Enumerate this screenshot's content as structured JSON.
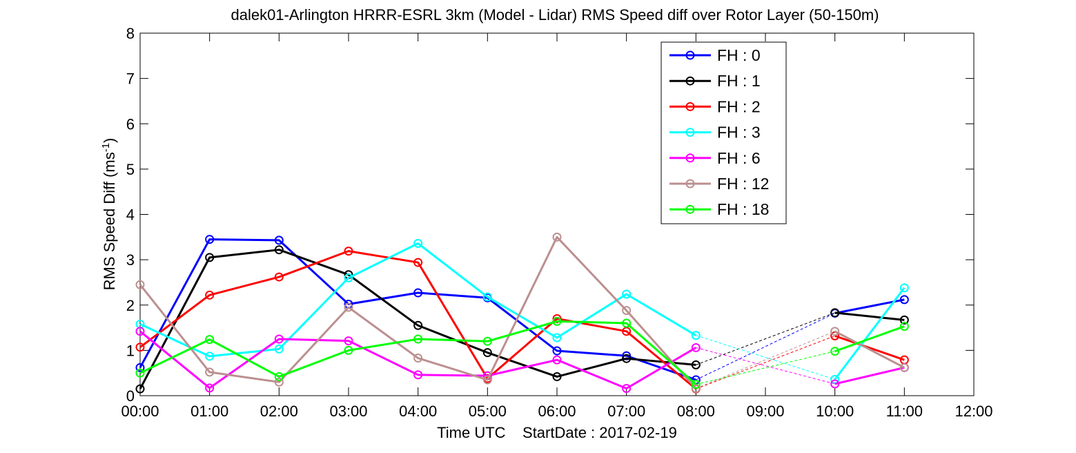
{
  "chart_data": {
    "type": "line",
    "title": "dalek01-Arlington HRRR-ESRL 3km (Model - Lidar) RMS Speed diff over Rotor Layer (50-150m)",
    "xlabel": "Time UTC    StartDate : 2017-02-19",
    "ylabel_main": "RMS Speed Diff (ms",
    "ylabel_sup": "-1",
    "ylabel_end": ")",
    "xlim": [
      0,
      12
    ],
    "ylim": [
      0,
      8
    ],
    "xticks": [
      0,
      1,
      2,
      3,
      4,
      5,
      6,
      7,
      8,
      9,
      10,
      11,
      12
    ],
    "xtick_labels": [
      "00:00",
      "01:00",
      "02:00",
      "03:00",
      "04:00",
      "05:00",
      "06:00",
      "07:00",
      "08:00",
      "09:00",
      "10:00",
      "11:00",
      "12:00"
    ],
    "yticks": [
      0,
      1,
      2,
      3,
      4,
      5,
      6,
      7,
      8
    ],
    "ytick_labels": [
      "0",
      "1",
      "2",
      "3",
      "4",
      "5",
      "6",
      "7",
      "8"
    ],
    "legend_position": "top-right",
    "grid": false,
    "gap_note": "dashed thin segments connect 08:00 to 10:00 (no data at 09:00)",
    "series": [
      {
        "name": "FH : 0",
        "color": "#0000ff",
        "x": [
          0,
          1,
          2,
          3,
          4,
          5,
          6,
          7,
          8,
          10,
          11
        ],
        "values": [
          0.62,
          3.45,
          3.43,
          2.02,
          2.27,
          2.16,
          0.99,
          0.88,
          0.35,
          1.82,
          2.12
        ]
      },
      {
        "name": "FH : 1",
        "color": "#000000",
        "x": [
          0,
          1,
          2,
          3,
          4,
          5,
          6,
          7,
          8,
          10,
          11
        ],
        "values": [
          0.15,
          3.05,
          3.22,
          2.67,
          1.55,
          0.95,
          0.42,
          0.82,
          0.68,
          1.83,
          1.67
        ]
      },
      {
        "name": "FH : 2",
        "color": "#ff0000",
        "x": [
          0,
          1,
          2,
          3,
          4,
          5,
          6,
          7,
          8,
          10,
          11
        ],
        "values": [
          1.07,
          2.22,
          2.62,
          3.19,
          2.94,
          0.38,
          1.7,
          1.42,
          0.15,
          1.32,
          0.79
        ]
      },
      {
        "name": "FH : 3",
        "color": "#00ffff",
        "x": [
          0,
          1,
          2,
          3,
          4,
          5,
          6,
          7,
          8,
          10,
          11
        ],
        "values": [
          1.58,
          0.87,
          1.03,
          2.6,
          3.36,
          2.18,
          1.28,
          2.24,
          1.33,
          0.36,
          2.38
        ]
      },
      {
        "name": "FH : 6",
        "color": "#ff00ff",
        "x": [
          0,
          1,
          2,
          3,
          4,
          5,
          6,
          7,
          8,
          10,
          11
        ],
        "values": [
          1.42,
          0.17,
          1.25,
          1.21,
          0.46,
          0.44,
          0.79,
          0.16,
          1.06,
          0.26,
          0.62
        ]
      },
      {
        "name": "FH : 12",
        "color": "#bc8f8f",
        "x": [
          0,
          1,
          2,
          3,
          4,
          5,
          6,
          7,
          8,
          10,
          11
        ],
        "values": [
          2.45,
          0.52,
          0.3,
          1.95,
          0.83,
          0.35,
          3.5,
          1.88,
          0.16,
          1.42,
          0.62
        ]
      },
      {
        "name": "FH : 18",
        "color": "#00ff00",
        "x": [
          0,
          1,
          2,
          3,
          4,
          5,
          6,
          7,
          8,
          10,
          11
        ],
        "values": [
          0.5,
          1.24,
          0.42,
          1.0,
          1.25,
          1.2,
          1.64,
          1.6,
          0.25,
          0.98,
          1.53
        ]
      }
    ]
  }
}
